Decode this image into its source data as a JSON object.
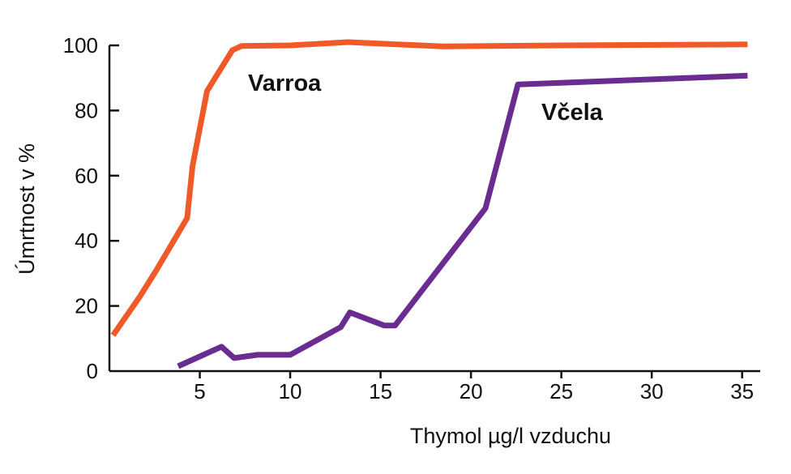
{
  "chart_data": {
    "type": "line",
    "title": "",
    "xlabel": "Thymol µg/l vzduchu",
    "ylabel": "Úmrtnost v %",
    "xlim": [
      0,
      36
    ],
    "ylim": [
      0,
      100
    ],
    "x_ticks": [
      5,
      10,
      15,
      20,
      25,
      30,
      35
    ],
    "y_ticks": [
      0,
      20,
      40,
      60,
      80,
      100
    ],
    "grid": false,
    "legend": "none",
    "series": [
      {
        "name": "Varroa",
        "color": "#f05a28",
        "points": [
          [
            0.2,
            11
          ],
          [
            1.7,
            23
          ],
          [
            2.6,
            31
          ],
          [
            4.3,
            47
          ],
          [
            4.6,
            63
          ],
          [
            5.4,
            86
          ],
          [
            6.8,
            98.5
          ],
          [
            7.3,
            99.8
          ],
          [
            10,
            100
          ],
          [
            13.2,
            101
          ],
          [
            18.4,
            99.7
          ],
          [
            25,
            100
          ],
          [
            35.3,
            100.3
          ]
        ]
      },
      {
        "name": "Včela",
        "color": "#6a2c91",
        "points": [
          [
            3.8,
            1.5
          ],
          [
            6.2,
            7.5
          ],
          [
            6.9,
            4
          ],
          [
            8.2,
            5
          ],
          [
            10,
            5
          ],
          [
            12.8,
            13.5
          ],
          [
            13.3,
            18
          ],
          [
            15.2,
            14
          ],
          [
            15.8,
            14
          ],
          [
            20.8,
            50
          ],
          [
            22.6,
            88
          ],
          [
            35.3,
            90.7
          ]
        ]
      }
    ]
  }
}
